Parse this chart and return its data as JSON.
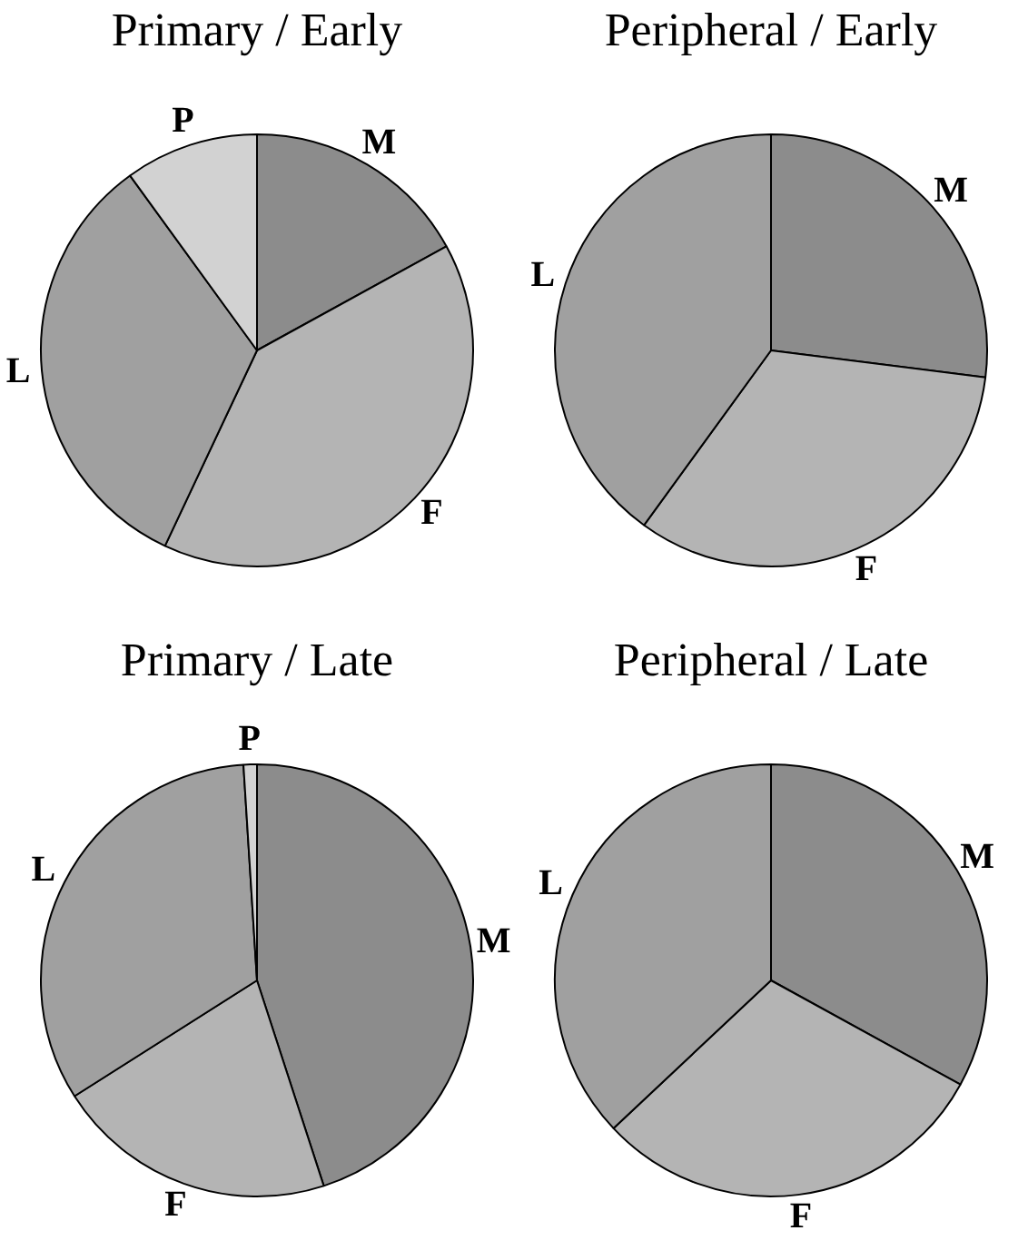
{
  "chart_data": [
    {
      "type": "pie",
      "title": "Primary / Early",
      "categories": [
        "M",
        "F",
        "L",
        "P"
      ],
      "values": [
        17,
        40,
        33,
        10
      ],
      "colors": [
        "#8c8c8c",
        "#b4b4b4",
        "#a0a0a0",
        "#d2d2d2"
      ],
      "legend": false
    },
    {
      "type": "pie",
      "title": "Peripheral / Early",
      "categories": [
        "M",
        "F",
        "L"
      ],
      "values": [
        27,
        33,
        40
      ],
      "colors": [
        "#8c8c8c",
        "#b4b4b4",
        "#a0a0a0"
      ],
      "legend": false
    },
    {
      "type": "pie",
      "title": "Primary / Late",
      "categories": [
        "M",
        "F",
        "L",
        "P"
      ],
      "values": [
        45,
        21,
        33,
        1
      ],
      "colors": [
        "#8c8c8c",
        "#b4b4b4",
        "#a0a0a0",
        "#d2d2d2"
      ],
      "legend": false
    },
    {
      "type": "pie",
      "title": "Peripheral / Late",
      "categories": [
        "M",
        "F",
        "L"
      ],
      "values": [
        33,
        30,
        37
      ],
      "colors": [
        "#8c8c8c",
        "#b4b4b4",
        "#a0a0a0"
      ],
      "legend": false
    }
  ]
}
